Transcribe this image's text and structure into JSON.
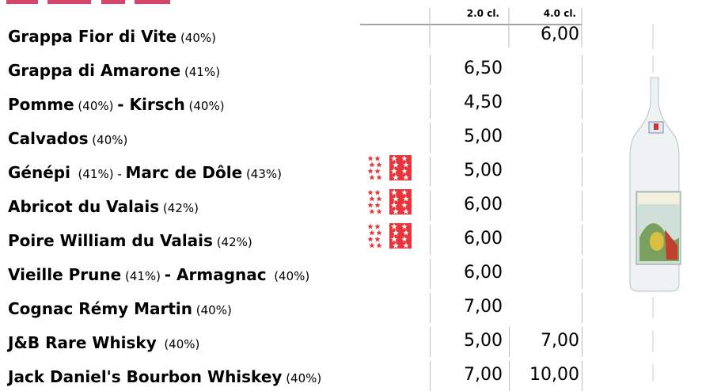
{
  "table": {
    "headers": [
      "2.0 cl.",
      "4.0 cl."
    ],
    "rows": [
      {
        "name": [
          {
            "text": "Grappa Fior di Vite",
            "style": "bold"
          },
          {
            "text": " (40%)",
            "style": "small"
          }
        ],
        "prices": [
          null,
          "6,00"
        ]
      },
      {
        "name": [
          {
            "text": "Grappa di Amarone",
            "style": "bold"
          },
          {
            "text": " (41%)",
            "style": "small"
          }
        ],
        "prices": [
          "6,50",
          null
        ]
      },
      {
        "name": [
          {
            "text": "Pomme",
            "style": "bold"
          },
          {
            "text": " (40%) ",
            "style": "small"
          },
          {
            "text": "- Kirsch",
            "style": "bold"
          },
          {
            "text": " (40%)",
            "style": "small"
          }
        ],
        "prices": [
          "4,50",
          null
        ]
      },
      {
        "name": [
          {
            "text": "Calvados",
            "style": "bold"
          },
          {
            "text": " (40%)",
            "style": "small"
          }
        ],
        "prices": [
          "5,00",
          null
        ]
      },
      {
        "name": [
          {
            "text": "Génépi",
            "style": "bold"
          },
          {
            "text": "  (41%) - ",
            "style": "small"
          },
          {
            "text": "Marc de Dôle",
            "style": "bold"
          },
          {
            "text": " (43%)",
            "style": "small"
          }
        ],
        "prices": [
          "5,00",
          null
        ],
        "flag": true
      },
      {
        "name": [
          {
            "text": "Abricot du Valais",
            "style": "bold"
          },
          {
            "text": " (42%)",
            "style": "small"
          }
        ],
        "prices": [
          "6,00",
          null
        ],
        "flag": true
      },
      {
        "name": [
          {
            "text": "Poire William du Valais",
            "style": "bold"
          },
          {
            "text": " (42%)",
            "style": "small"
          }
        ],
        "prices": [
          "6,00",
          null
        ],
        "flag": true
      },
      {
        "name": [
          {
            "text": "Vieille Prune",
            "style": "bold"
          },
          {
            "text": " (41%) ",
            "style": "small"
          },
          {
            "text": "- Armagnac",
            "style": "bold"
          },
          {
            "text": "  (40%)",
            "style": "small"
          }
        ],
        "prices": [
          "6,00",
          null
        ]
      },
      {
        "name": [
          {
            "text": "Cognac Rémy Martin",
            "style": "bold"
          },
          {
            "text": " (40%)",
            "style": "small"
          }
        ],
        "prices": [
          "7,00",
          null
        ]
      },
      {
        "name": [
          {
            "text": "J&B Rare Whisky",
            "style": "bold"
          },
          {
            "text": "  (40%)",
            "style": "small"
          }
        ],
        "prices": [
          "5,00",
          "7,00"
        ]
      },
      {
        "name": [
          {
            "text": "Jack Daniel's Bourbon Whiskey",
            "style": "bold"
          },
          {
            "text": " (40%)",
            "style": "small"
          }
        ],
        "prices": [
          "7,00",
          "10,00"
        ]
      }
    ]
  }
}
